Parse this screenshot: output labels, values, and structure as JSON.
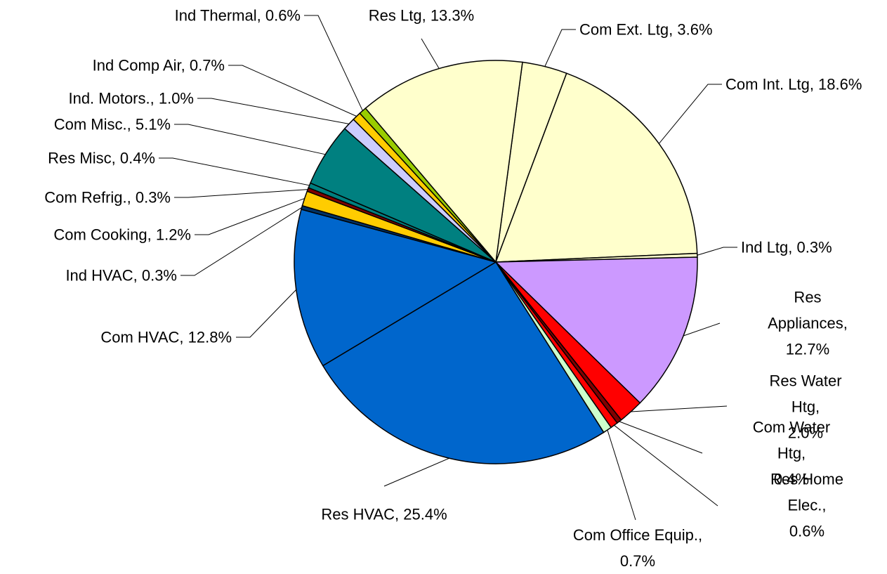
{
  "chart_data": {
    "type": "pie",
    "categories": [
      "Com Ext. Ltg",
      "Com Int. Ltg",
      "Ind Ltg",
      "Res Appliances",
      "Res Water Htg",
      "Com Water Htg",
      "Res Home Elec.",
      "Com Office Equip.",
      "Res HVAC",
      "Com HVAC",
      "Ind HVAC",
      "Com Cooking",
      "Com Refrig.",
      "Res Misc",
      "Com Misc.",
      "Ind. Motors.",
      "Ind Comp Air",
      "Ind Thermal",
      "Res Ltg"
    ],
    "values": [
      3.6,
      18.6,
      0.3,
      12.7,
      2.0,
      0.4,
      0.6,
      0.7,
      25.4,
      12.8,
      0.3,
      1.2,
      0.3,
      0.4,
      5.1,
      1.0,
      0.7,
      0.6,
      13.3
    ],
    "value_labels": [
      "Com Ext. Ltg, 3.6%",
      "Com Int. Ltg, 18.6%",
      "Ind Ltg, 0.3%",
      "Res Appliances,\n12.7%",
      "Res Water Htg,\n2.0%",
      "Com Water Htg,\n0.4%",
      "Res Home Elec.,\n0.6%",
      "Com Office Equip.,\n0.7%",
      "Res HVAC, 25.4%",
      "Com HVAC, 12.8%",
      "Ind HVAC, 0.3%",
      "Com Cooking, 1.2%",
      "Com Refrig., 0.3%",
      "Res Misc, 0.4%",
      "Com Misc., 5.1%",
      "Ind. Motors., 1.0%",
      "Ind Comp Air, 0.7%",
      "Ind Thermal, 0.6%",
      "Res Ltg, 13.3%"
    ],
    "colors": [
      "#ffffcc",
      "#ffffcc",
      "#ffffcc",
      "#cc99ff",
      "#ff0000",
      "#800000",
      "#ff0000",
      "#ccffcc",
      "#0066cc",
      "#0066cc",
      "#003366",
      "#ffcc00",
      "#800000",
      "#008080",
      "#008080",
      "#ccccff",
      "#ffcc00",
      "#99cc00",
      "#ffffcc"
    ]
  }
}
